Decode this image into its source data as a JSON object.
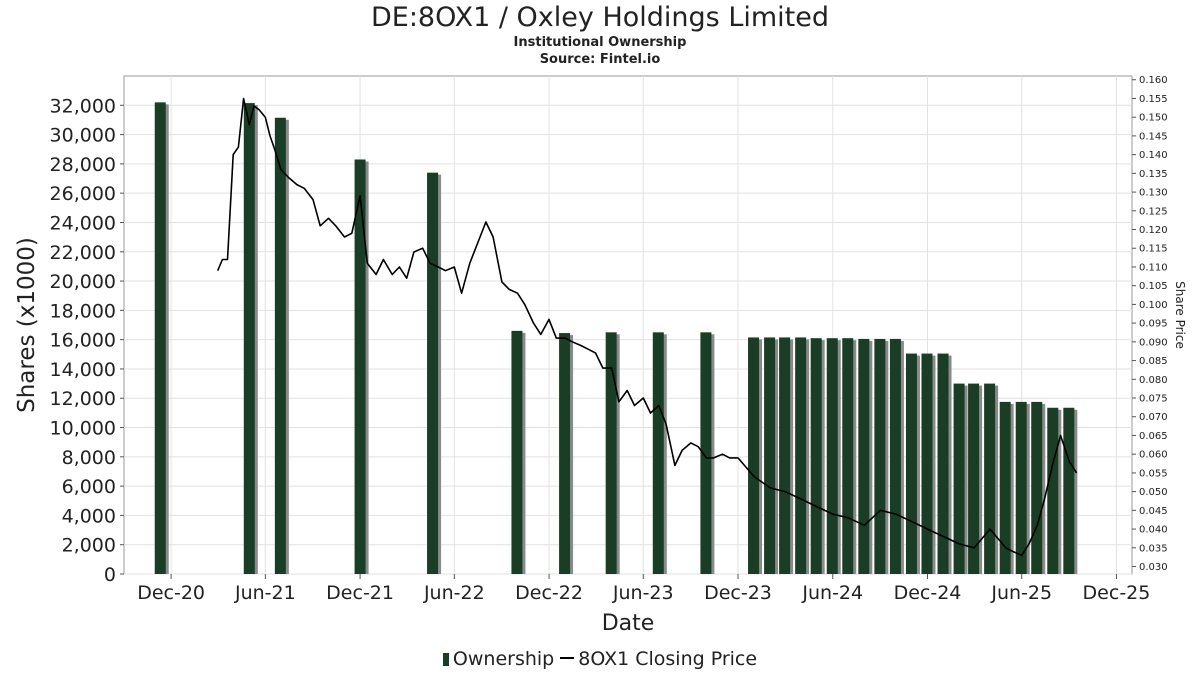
{
  "chart_title": "DE:8OX1 / Oxley Holdings Limited",
  "chart_subtitle": "Institutional Ownership",
  "chart_source": "Source: Fintel.io",
  "legend": {
    "ownership": "Ownership",
    "price": "8OX1 Closing Price"
  },
  "colors": {
    "bar": "#1a3d25",
    "bar_shadow": "#8a8a8a",
    "line": "#000000",
    "grid": "#e2e2e2"
  },
  "chart_data": {
    "type": "bar",
    "title": "DE:8OX1 / Oxley Holdings Limited",
    "subtitle": "Institutional Ownership",
    "xlabel": "Date",
    "ylabel": "Shares (x1000)",
    "y2label": "Share Price",
    "ylim": [
      0,
      34000
    ],
    "y2lim": [
      0.028,
      0.161
    ],
    "xlim": [
      "2020-09-01",
      "2025-12-31"
    ],
    "grid": true,
    "legend_position": "bottom",
    "x_ticks": [
      "Dec-20",
      "Jun-21",
      "Dec-21",
      "Jun-22",
      "Dec-22",
      "Jun-23",
      "Dec-23",
      "Jun-24",
      "Dec-24",
      "Jun-25",
      "Dec-25"
    ],
    "x_tick_dates": [
      "2020-12-01",
      "2021-06-01",
      "2021-12-01",
      "2022-06-01",
      "2022-12-01",
      "2023-06-01",
      "2023-12-01",
      "2024-06-01",
      "2024-12-01",
      "2025-06-01",
      "2025-12-01"
    ],
    "y_ticks": [
      "0",
      "2,000",
      "4,000",
      "6,000",
      "8,000",
      "10,000",
      "12,000",
      "14,000",
      "16,000",
      "18,000",
      "20,000",
      "22,000",
      "24,000",
      "26,000",
      "28,000",
      "30,000",
      "32,000"
    ],
    "y_tick_values": [
      0,
      2000,
      4000,
      6000,
      8000,
      10000,
      12000,
      14000,
      16000,
      18000,
      20000,
      22000,
      24000,
      26000,
      28000,
      30000,
      32000
    ],
    "y2_ticks": [
      "0.030",
      "0.035",
      "0.040",
      "0.045",
      "0.050",
      "0.055",
      "0.060",
      "0.065",
      "0.070",
      "0.075",
      "0.080",
      "0.085",
      "0.090",
      "0.095",
      "0.100",
      "0.105",
      "0.110",
      "0.115",
      "0.120",
      "0.125",
      "0.130",
      "0.135",
      "0.140",
      "0.145",
      "0.150",
      "0.155",
      "0.160"
    ],
    "y2_tick_values": [
      0.03,
      0.035,
      0.04,
      0.045,
      0.05,
      0.055,
      0.06,
      0.065,
      0.07,
      0.075,
      0.08,
      0.085,
      0.09,
      0.095,
      0.1,
      0.105,
      0.11,
      0.115,
      0.12,
      0.125,
      0.13,
      0.135,
      0.14,
      0.145,
      0.15,
      0.155,
      0.16
    ],
    "series": [
      {
        "name": "Ownership",
        "type": "bar",
        "x": [
          "2020-11-10",
          "2021-05-01",
          "2021-06-30",
          "2021-12-01",
          "2022-04-20",
          "2022-09-30",
          "2022-12-31",
          "2023-03-31",
          "2023-06-30",
          "2023-09-30",
          "2023-12-31",
          "2024-01-31",
          "2024-02-29",
          "2024-03-31",
          "2024-04-30",
          "2024-05-31",
          "2024-06-30",
          "2024-07-31",
          "2024-08-31",
          "2024-09-30",
          "2024-10-31",
          "2024-11-30",
          "2024-12-31",
          "2025-01-31",
          "2025-02-28",
          "2025-03-31",
          "2025-04-30",
          "2025-05-31",
          "2025-06-30",
          "2025-07-31",
          "2025-08-31"
        ],
        "values": [
          32200,
          32150,
          31150,
          28300,
          27400,
          16600,
          16450,
          16500,
          16500,
          16500,
          16150,
          16150,
          16150,
          16150,
          16100,
          16100,
          16100,
          16050,
          16050,
          16050,
          15050,
          15050,
          15050,
          13000,
          13000,
          13000,
          11750,
          11750,
          11750,
          11350,
          11350
        ]
      },
      {
        "name": "8OX1 Closing Price",
        "type": "line",
        "x": [
          "2021-03-01",
          "2021-03-10",
          "2021-03-20",
          "2021-03-31",
          "2021-04-10",
          "2021-04-20",
          "2021-05-01",
          "2021-05-10",
          "2021-05-20",
          "2021-06-01",
          "2021-06-10",
          "2021-06-20",
          "2021-07-01",
          "2021-07-15",
          "2021-08-01",
          "2021-08-15",
          "2021-09-01",
          "2021-09-15",
          "2021-10-01",
          "2021-10-15",
          "2021-11-01",
          "2021-11-15",
          "2021-12-01",
          "2021-12-15",
          "2022-01-01",
          "2022-01-15",
          "2022-02-01",
          "2022-02-15",
          "2022-03-01",
          "2022-03-15",
          "2022-04-01",
          "2022-04-15",
          "2022-05-01",
          "2022-05-15",
          "2022-06-01",
          "2022-06-15",
          "2022-07-01",
          "2022-07-15",
          "2022-08-01",
          "2022-08-15",
          "2022-09-01",
          "2022-09-15",
          "2022-10-01",
          "2022-10-15",
          "2022-11-01",
          "2022-11-15",
          "2022-12-01",
          "2022-12-15",
          "2023-01-01",
          "2023-01-15",
          "2023-02-01",
          "2023-02-15",
          "2023-03-01",
          "2023-03-15",
          "2023-04-01",
          "2023-04-15",
          "2023-05-01",
          "2023-05-15",
          "2023-06-01",
          "2023-06-15",
          "2023-07-01",
          "2023-07-15",
          "2023-08-01",
          "2023-08-15",
          "2023-09-01",
          "2023-09-15",
          "2023-10-01",
          "2023-10-15",
          "2023-11-01",
          "2023-11-15",
          "2023-12-01",
          "2024-01-01",
          "2024-02-01",
          "2024-03-01",
          "2024-04-01",
          "2024-05-01",
          "2024-06-01",
          "2024-07-01",
          "2024-08-01",
          "2024-09-01",
          "2024-10-01",
          "2024-11-01",
          "2024-12-01",
          "2025-01-01",
          "2025-02-01",
          "2025-03-01",
          "2025-04-01",
          "2025-05-01",
          "2025-05-15",
          "2025-06-01",
          "2025-06-15",
          "2025-07-01",
          "2025-07-15",
          "2025-08-01",
          "2025-08-15",
          "2025-09-01",
          "2025-09-15"
        ],
        "values": [
          0.109,
          0.112,
          0.112,
          0.14,
          0.142,
          0.155,
          0.148,
          0.153,
          0.152,
          0.15,
          0.145,
          0.141,
          0.136,
          0.134,
          0.132,
          0.131,
          0.128,
          0.121,
          0.123,
          0.121,
          0.118,
          0.119,
          0.129,
          0.111,
          0.108,
          0.112,
          0.108,
          0.11,
          0.107,
          0.114,
          0.115,
          0.111,
          0.11,
          0.109,
          0.11,
          0.103,
          0.111,
          0.116,
          0.122,
          0.118,
          0.106,
          0.104,
          0.103,
          0.1,
          0.095,
          0.092,
          0.096,
          0.091,
          0.091,
          0.09,
          0.089,
          0.088,
          0.087,
          0.083,
          0.083,
          0.074,
          0.077,
          0.073,
          0.075,
          0.071,
          0.073,
          0.068,
          0.057,
          0.061,
          0.063,
          0.062,
          0.059,
          0.059,
          0.06,
          0.059,
          0.059,
          0.054,
          0.051,
          0.05,
          0.048,
          0.046,
          0.044,
          0.043,
          0.041,
          0.045,
          0.044,
          0.042,
          0.04,
          0.038,
          0.036,
          0.035,
          0.04,
          0.035,
          0.034,
          0.033,
          0.036,
          0.041,
          0.048,
          0.058,
          0.065,
          0.058,
          0.055
        ]
      }
    ]
  }
}
